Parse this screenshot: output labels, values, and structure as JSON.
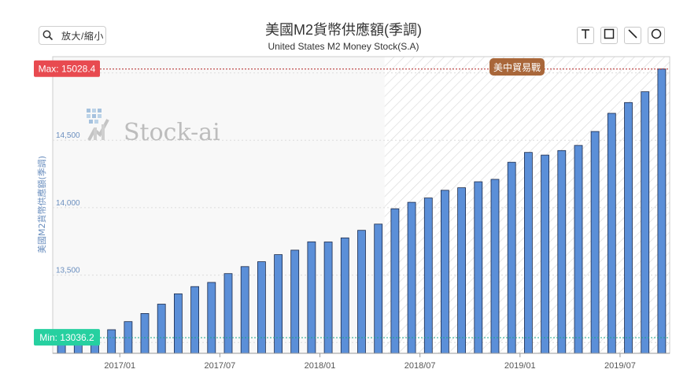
{
  "toolbar": {
    "zoom_label": "放大/縮小",
    "tools": [
      {
        "name": "text-tool-button",
        "icon": "text-icon"
      },
      {
        "name": "rectangle-tool-button",
        "icon": "rectangle-icon"
      },
      {
        "name": "line-tool-button",
        "icon": "line-icon"
      },
      {
        "name": "circle-tool-button",
        "icon": "circle-icon"
      }
    ]
  },
  "colors": {
    "bar": "#5b8fd8",
    "bar_border": "#1b2a4a",
    "max_badge": "#e84a50",
    "min_badge": "#26d0a0",
    "event_badge": "#a9673a",
    "axis_text": "#6b8fbf"
  },
  "watermark": "Stock-ai",
  "chart_data": {
    "type": "bar",
    "title": "美國M2貨幣供應額(季調)",
    "subtitle": "United States M2 Money Stock(S.A)",
    "ylabel": "美國M2貨幣供應額(季調)",
    "xlabel": "",
    "ylim": [
      12920,
      15120
    ],
    "yticks": [
      13000,
      13500,
      14000,
      14500,
      15000
    ],
    "ytick_labels": [
      "13,000",
      "13,500",
      "14,000",
      "14,500",
      "15,000"
    ],
    "xtick_labels": [
      "2017/01",
      "2017/07",
      "2018/01",
      "2018/07",
      "2019/01",
      "2019/07"
    ],
    "xtick_after_bar_index": [
      4,
      10,
      16,
      22,
      28,
      34
    ],
    "grid": true,
    "max": {
      "label": "Max: 15028.4",
      "value": 15028.4
    },
    "min": {
      "label": "Min: 13036.2",
      "value": 13036.2
    },
    "event": {
      "label": "美中貿易戰",
      "start_index": 20
    },
    "values": [
      13036.2,
      13048,
      13073,
      13095,
      13155,
      13215,
      13285,
      13361,
      13415,
      13446,
      13511,
      13563,
      13599,
      13652,
      13685,
      13747,
      13746,
      13776,
      13832,
      13878,
      13992,
      14040,
      14072,
      14129,
      14148,
      14192,
      14210,
      14337,
      14410,
      14390,
      14424,
      14462,
      14565,
      14700,
      14780,
      14860,
      15028.4
    ]
  }
}
